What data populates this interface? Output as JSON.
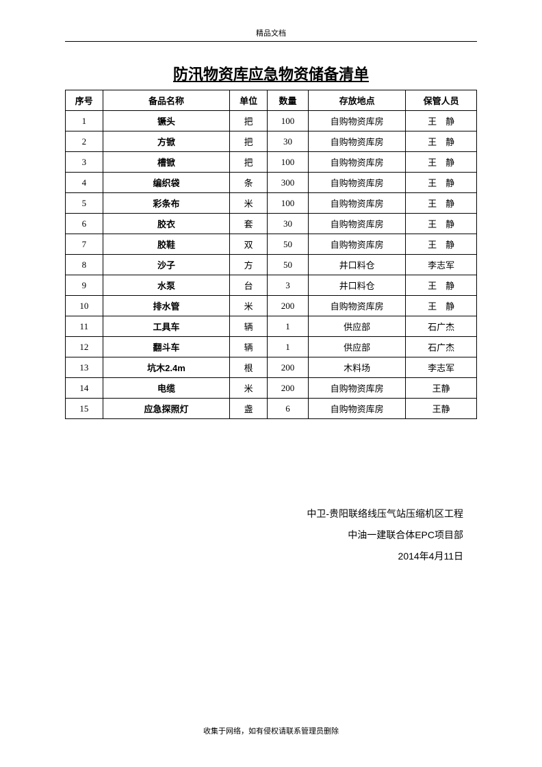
{
  "header": {
    "label": "精品文档"
  },
  "title": "防汛物资库应急物资储备清单",
  "table": {
    "columns": [
      "序号",
      "备品名称",
      "单位",
      "数量",
      "存放地点",
      "保管人员"
    ],
    "rows": [
      {
        "seq": "1",
        "name": "镢头",
        "unit": "把",
        "qty": "100",
        "loc": "自购物资库房",
        "keeper": "王　静",
        "keeper_spaced": true
      },
      {
        "seq": "2",
        "name": "方锨",
        "unit": "把",
        "qty": "30",
        "loc": "自购物资库房",
        "keeper": "王　静",
        "keeper_spaced": true
      },
      {
        "seq": "3",
        "name": "槽锨",
        "unit": "把",
        "qty": "100",
        "loc": "自购物资库房",
        "keeper": "王　静",
        "keeper_spaced": true
      },
      {
        "seq": "4",
        "name": "编织袋",
        "unit": "条",
        "qty": "300",
        "loc": "自购物资库房",
        "keeper": "王　静",
        "keeper_spaced": true
      },
      {
        "seq": "5",
        "name": "彩条布",
        "unit": "米",
        "qty": "100",
        "loc": "自购物资库房",
        "keeper": "王　静",
        "keeper_spaced": true
      },
      {
        "seq": "6",
        "name": "胶衣",
        "unit": "套",
        "qty": "30",
        "loc": "自购物资库房",
        "keeper": "王　静",
        "keeper_spaced": true
      },
      {
        "seq": "7",
        "name": "胶鞋",
        "unit": "双",
        "qty": "50",
        "loc": "自购物资库房",
        "keeper": "王　静",
        "keeper_spaced": true
      },
      {
        "seq": "8",
        "name": "沙子",
        "unit": "方",
        "qty": "50",
        "loc": "井口料仓",
        "keeper": "李志军",
        "keeper_spaced": false
      },
      {
        "seq": "9",
        "name": "水泵",
        "unit": "台",
        "qty": "3",
        "loc": "井口料仓",
        "keeper": "王　静",
        "keeper_spaced": true
      },
      {
        "seq": "10",
        "name": "排水管",
        "unit": "米",
        "qty": "200",
        "loc": "自购物资库房",
        "keeper": "王　静",
        "keeper_spaced": true
      },
      {
        "seq": "11",
        "name": "工具车",
        "unit": "辆",
        "qty": "1",
        "loc": "供应部",
        "keeper": "石广杰",
        "keeper_spaced": false
      },
      {
        "seq": "12",
        "name": "翻斗车",
        "unit": "辆",
        "qty": "1",
        "loc": "供应部",
        "keeper": "石广杰",
        "keeper_spaced": false
      },
      {
        "seq": "13",
        "name": "坑木2.4m",
        "unit": "根",
        "qty": "200",
        "loc": "木料场",
        "keeper": "李志军",
        "keeper_spaced": false
      },
      {
        "seq": "14",
        "name": "电缆",
        "unit": "米",
        "qty": "200",
        "loc": "自购物资库房",
        "keeper": "王静",
        "keeper_spaced": false
      },
      {
        "seq": "15",
        "name": "应急探照灯",
        "unit": "盏",
        "qty": "6",
        "loc": "自购物资库房",
        "keeper": "王静",
        "keeper_spaced": false
      }
    ]
  },
  "signature": {
    "line1": "中卫-贵阳联络线压气站压缩机区工程",
    "line2": "中油一建联合体EPC项目部",
    "line3": "2014年4月11日"
  },
  "footer": {
    "note": "收集于网络，如有侵权请联系管理员删除"
  },
  "colors": {
    "border": "#000000",
    "text": "#000000",
    "background": "#ffffff"
  }
}
